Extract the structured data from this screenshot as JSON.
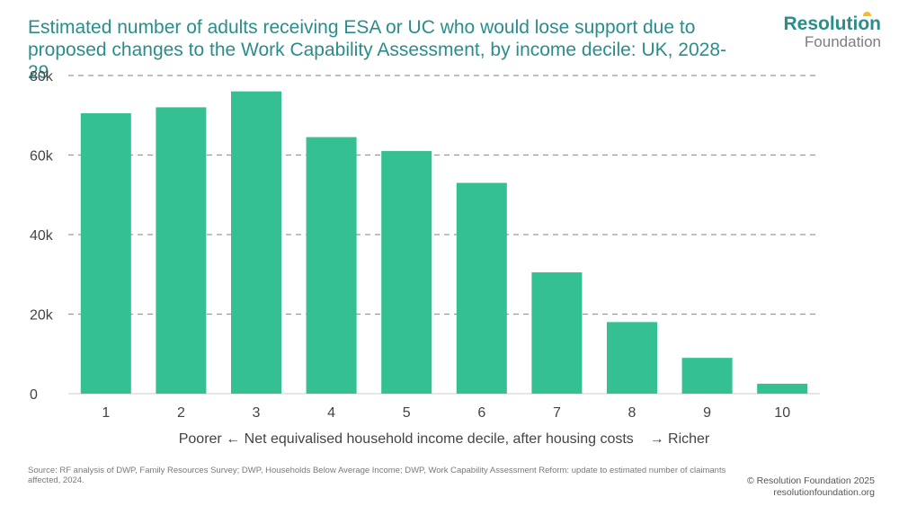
{
  "title": "Estimated number of adults receiving ESA or UC who would lose support due to proposed changes to the Work Capability Assessment, by income decile: UK, 2028-29",
  "logo": {
    "line1": "Resolution",
    "line2": "Foundation"
  },
  "source": "Source: RF analysis of DWP, Family Resources Survey; DWP, Households Below Average Income; DWP, Work Capability Assessment Reform: update to estimated number of claimants affected, 2024.",
  "copyright": {
    "line1": "© Resolution Foundation 2025",
    "line2": "resolutionfoundation.org"
  },
  "colors": {
    "bar": "#34c093",
    "title": "#2a8d8a",
    "grid": "#9a9a9a",
    "axis": "#444444"
  },
  "chart_data": {
    "type": "bar",
    "categories": [
      "1",
      "2",
      "3",
      "4",
      "5",
      "6",
      "7",
      "8",
      "9",
      "10"
    ],
    "values": [
      70500,
      72000,
      76000,
      64500,
      61000,
      53000,
      30500,
      18000,
      9000,
      2500
    ],
    "xlabel": "Poorer ← Net equivalised household income decile, after housing costs    → Richer",
    "ylabel": "",
    "ylim": [
      0,
      80000
    ],
    "yticks": [
      0,
      20000,
      40000,
      60000,
      80000
    ],
    "ytick_labels": [
      "0",
      "20k",
      "40k",
      "60k",
      "80k"
    ],
    "grid": true,
    "grid_style": "dashed"
  }
}
